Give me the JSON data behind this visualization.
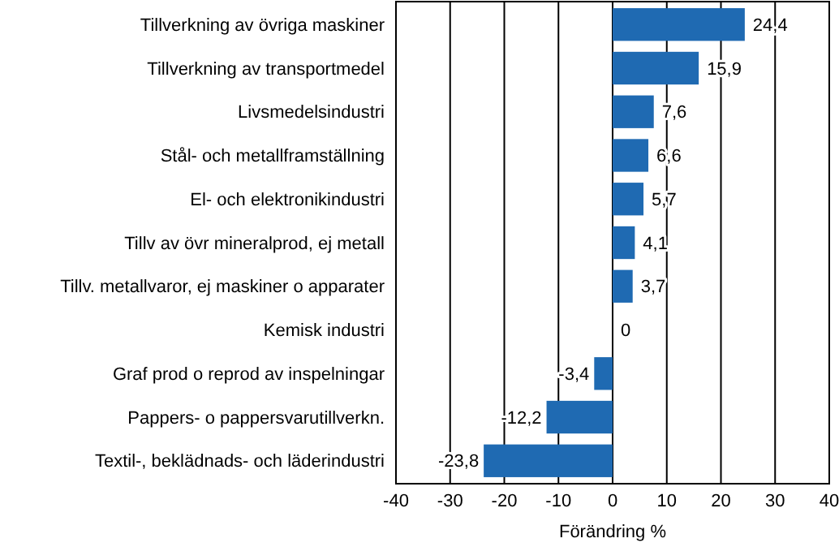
{
  "chart_data": {
    "type": "bar",
    "orientation": "horizontal",
    "xlabel": "Förändring %",
    "categories": [
      "Tillverkning av övriga maskiner",
      "Tillverkning av transportmedel",
      "Livsmedelsindustri",
      "Stål- och metallframställning",
      "El- och elektronikindustri",
      "Tillv av övr mineralprod, ej metall",
      "Tillv. metallvaror, ej maskiner o apparater",
      "Kemisk industri",
      "Graf prod o reprod av inspelningar",
      "Pappers- o pappersvarutillverkn.",
      "Textil-, beklädnads- och läderindustri"
    ],
    "values": [
      24.4,
      15.9,
      7.6,
      6.6,
      5.7,
      4.1,
      3.7,
      0,
      -3.4,
      -12.2,
      -23.8
    ],
    "value_labels": [
      "24,4",
      "15,9",
      "7,6",
      "6,6",
      "5,7",
      "4,1",
      "3,7",
      "0",
      "-3,4",
      "-12,2",
      "-23,8"
    ],
    "color": "#1f6ab2",
    "xlim": [
      -40,
      40
    ],
    "xticks": [
      -40,
      -30,
      -20,
      -10,
      0,
      10,
      20,
      30,
      40
    ],
    "grid": "x"
  }
}
